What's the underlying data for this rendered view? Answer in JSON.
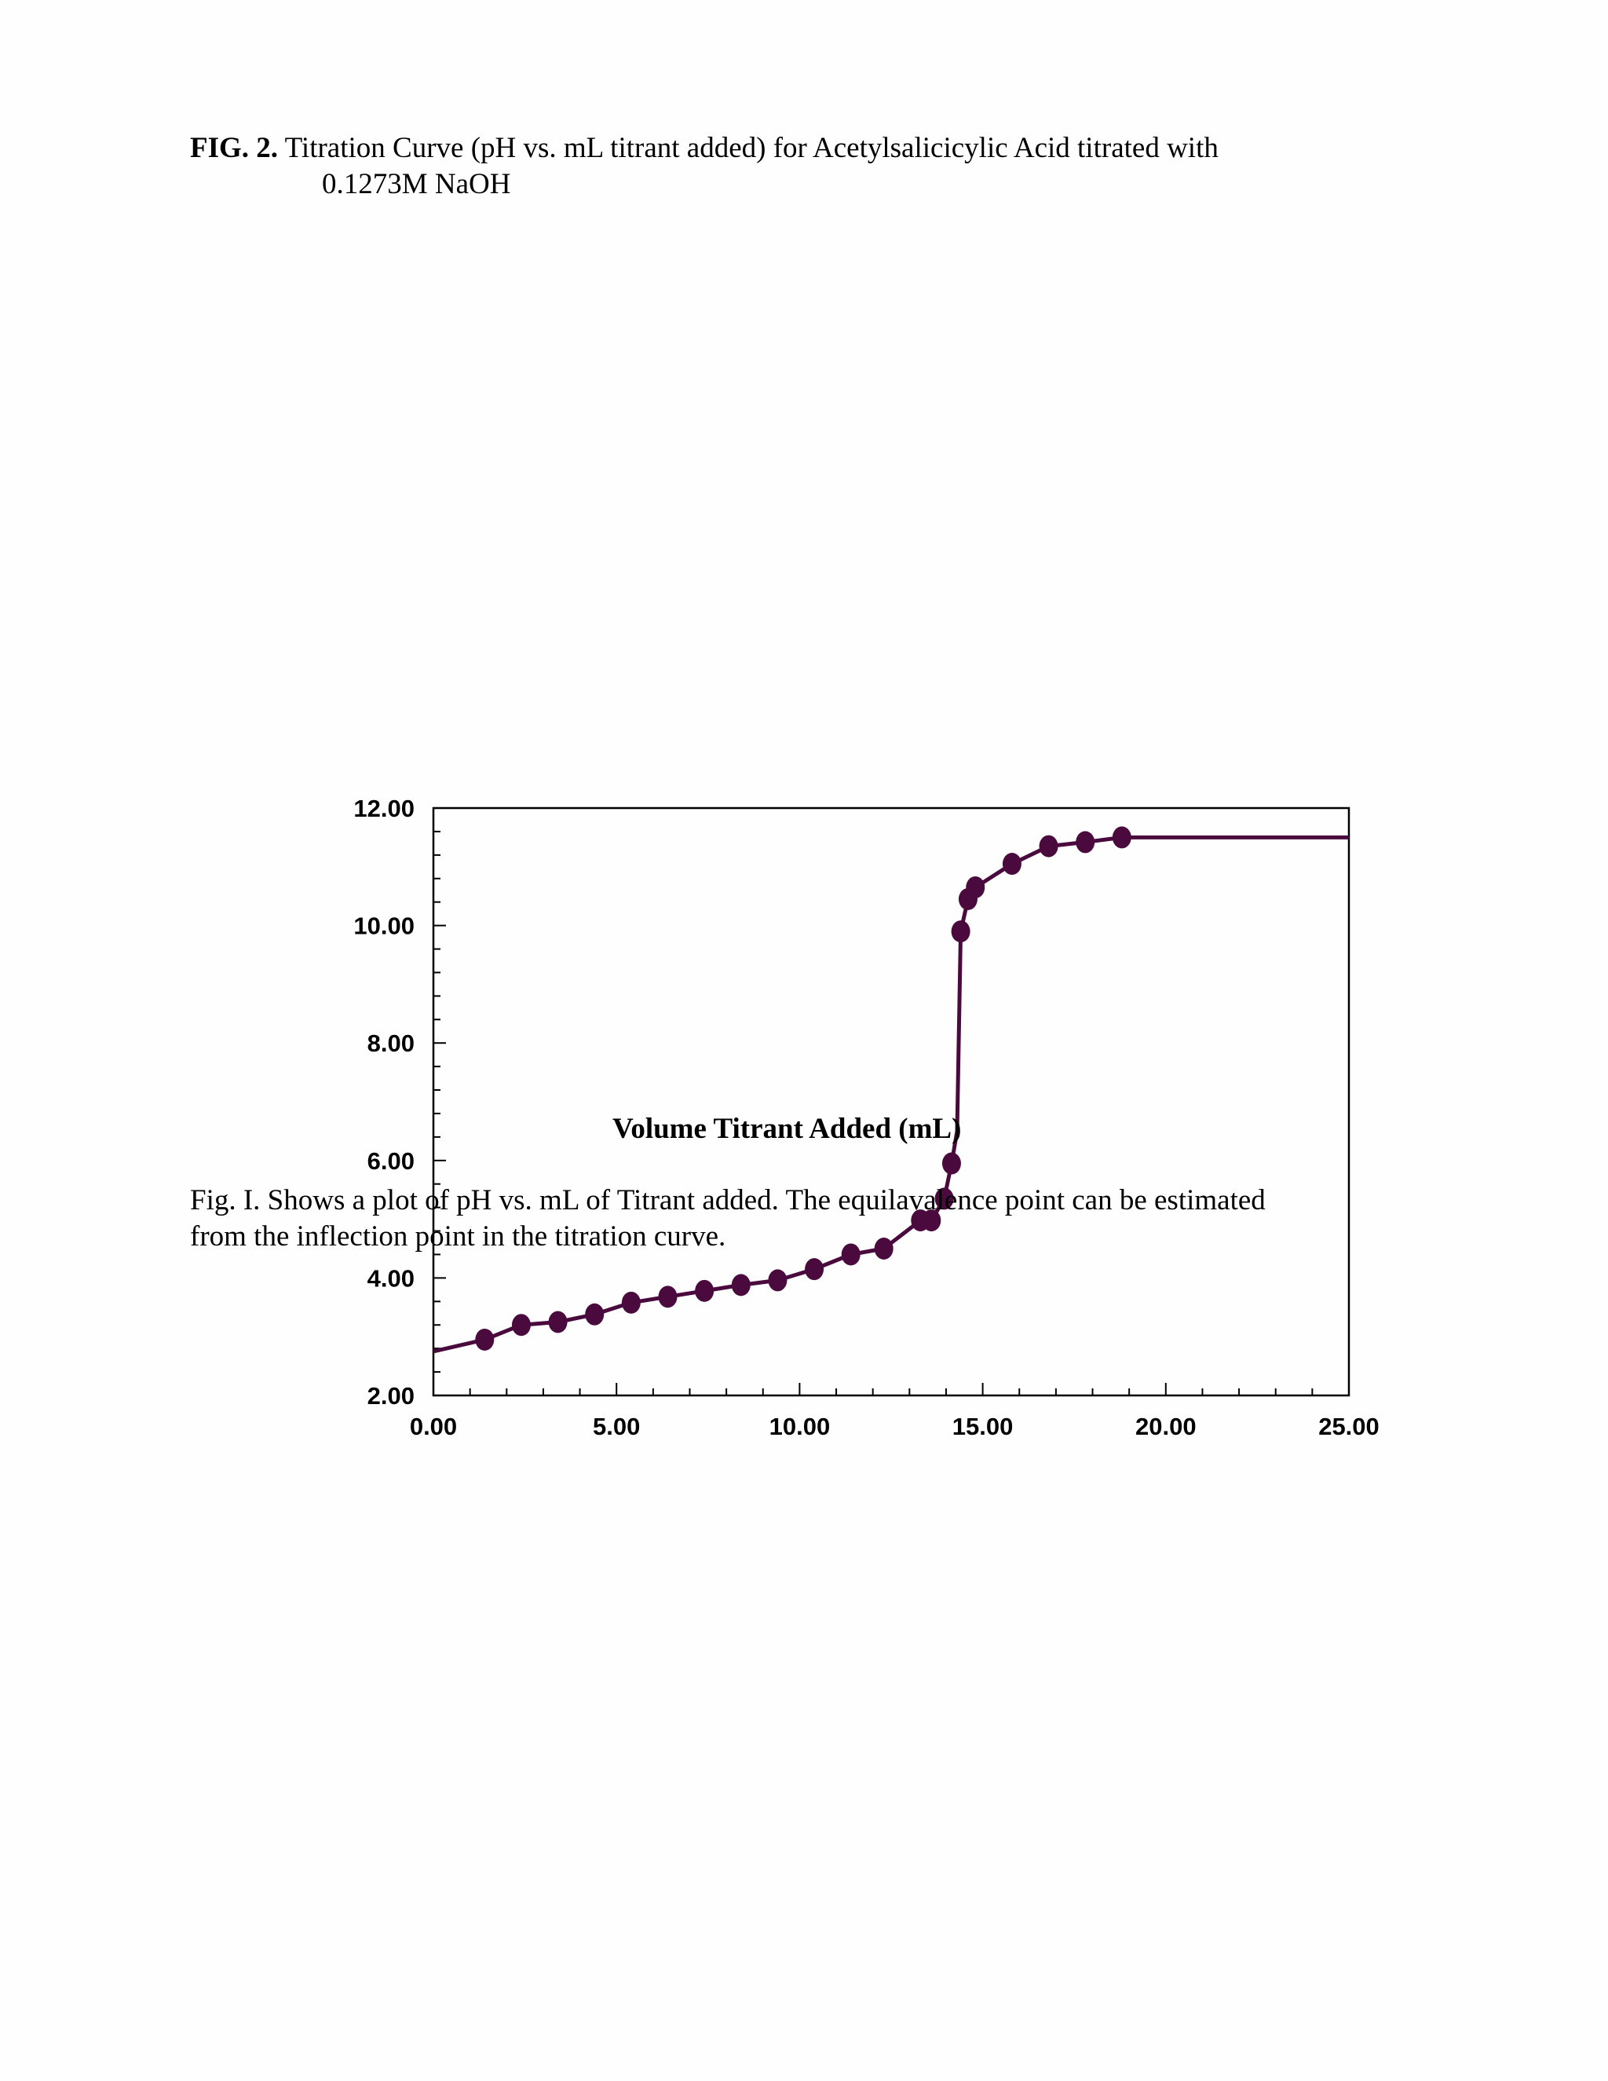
{
  "caption": {
    "label": "FIG. 2.",
    "text_line1": "Titration Curve (pH vs. mL titrant added) for Acetylsalicicylic Acid titrated with",
    "text_line2": "0.1273M NaOH"
  },
  "note": {
    "line1": "Fig. I.  Shows a plot of pH vs. mL of Titrant added.  The equilavalence point can be estimated",
    "line2": "from the inflection point in the titration curve."
  },
  "colors": {
    "series": "#4a0a3e",
    "axis": "#000000"
  },
  "chart_data": {
    "type": "scatter",
    "title": "",
    "xlabel": "Volume Titrant Added (mL)",
    "ylabel": "",
    "xlim": [
      0,
      25
    ],
    "ylim": [
      2,
      12
    ],
    "x_tick_labels": [
      "0.00",
      "5.00",
      "10.00",
      "15.00",
      "20.00",
      "25.00"
    ],
    "y_tick_labels": [
      "2.00",
      "4.00",
      "6.00",
      "8.00",
      "10.00",
      "12.00"
    ],
    "grid": false,
    "legend": "none",
    "series": [
      {
        "points": [
          [
            1.4,
            2.95
          ],
          [
            2.4,
            3.2
          ],
          [
            3.4,
            3.25
          ],
          [
            4.4,
            3.38
          ],
          [
            5.4,
            3.58
          ],
          [
            6.4,
            3.68
          ],
          [
            7.4,
            3.78
          ],
          [
            8.4,
            3.88
          ],
          [
            9.4,
            3.96
          ],
          [
            10.4,
            4.15
          ],
          [
            11.4,
            4.4
          ],
          [
            12.3,
            4.5
          ],
          [
            13.3,
            4.98
          ],
          [
            13.6,
            4.98
          ],
          [
            13.95,
            5.35
          ],
          [
            14.15,
            5.95
          ],
          [
            14.4,
            9.9
          ],
          [
            14.6,
            10.45
          ],
          [
            14.8,
            10.65
          ],
          [
            15.8,
            11.05
          ],
          [
            16.8,
            11.35
          ],
          [
            17.8,
            11.42
          ],
          [
            18.8,
            11.5
          ]
        ],
        "curve": [
          [
            0,
            2.75
          ],
          [
            1.4,
            2.95
          ],
          [
            2.4,
            3.2
          ],
          [
            3.4,
            3.25
          ],
          [
            4.4,
            3.38
          ],
          [
            5.4,
            3.58
          ],
          [
            6.4,
            3.68
          ],
          [
            7.4,
            3.78
          ],
          [
            8.4,
            3.88
          ],
          [
            9.4,
            3.96
          ],
          [
            10.4,
            4.15
          ],
          [
            11.4,
            4.4
          ],
          [
            12.3,
            4.5
          ],
          [
            13.3,
            4.98
          ],
          [
            13.6,
            4.98
          ],
          [
            13.95,
            5.35
          ],
          [
            14.15,
            5.95
          ],
          [
            14.3,
            6.5
          ],
          [
            14.4,
            9.9
          ],
          [
            14.6,
            10.45
          ],
          [
            14.8,
            10.65
          ],
          [
            15.8,
            11.05
          ],
          [
            16.8,
            11.35
          ],
          [
            17.8,
            11.42
          ],
          [
            18.8,
            11.5
          ],
          [
            25,
            11.5
          ]
        ]
      }
    ]
  }
}
